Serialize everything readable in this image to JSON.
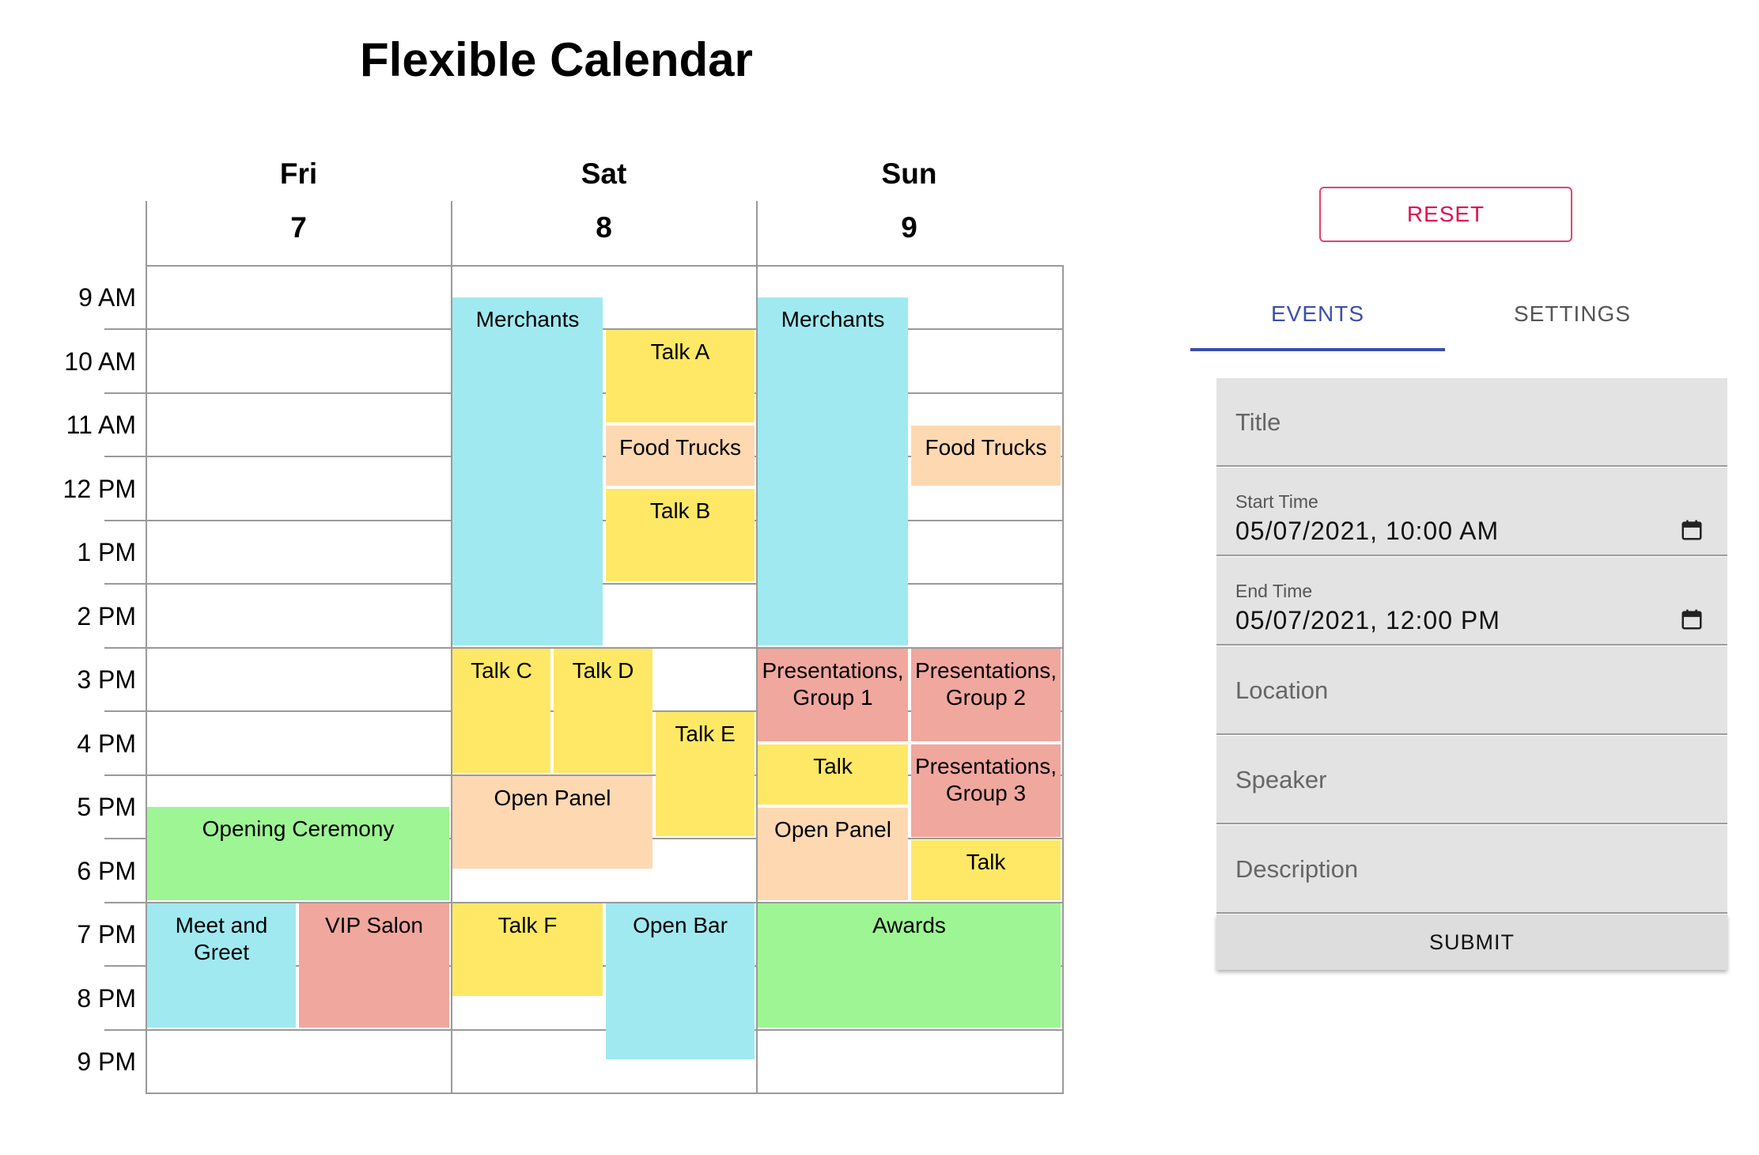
{
  "title": "Flexible Calendar",
  "days": [
    {
      "name": "Fri",
      "num": "7"
    },
    {
      "name": "Sat",
      "num": "8"
    },
    {
      "name": "Sun",
      "num": "9"
    }
  ],
  "times": [
    "9 AM",
    "10 AM",
    "11 AM",
    "12 PM",
    "1 PM",
    "2 PM",
    "3 PM",
    "4 PM",
    "5 PM",
    "6 PM",
    "7 PM",
    "8 PM",
    "9 PM"
  ],
  "colors": {
    "cyan": "#a0e9f0",
    "yellow": "#fee866",
    "peach": "#fed8b1",
    "pink": "#f0a79e",
    "green": "#9ef594",
    "accent": "#3b4fa8",
    "reset": "#e0114f"
  },
  "events": {
    "fri_opening": "Opening Ceremony",
    "fri_meet": "Meet and Greet",
    "fri_vip": "VIP Salon",
    "sat_merchants": "Merchants",
    "sat_talk_a": "Talk A",
    "sat_food": "Food Trucks",
    "sat_talk_b": "Talk B",
    "sat_talk_c": "Talk C",
    "sat_talk_d": "Talk D",
    "sat_talk_e": "Talk E",
    "sat_panel": "Open Panel",
    "sat_talk_f": "Talk F",
    "sat_bar": "Open Bar",
    "sun_merchants": "Merchants",
    "sun_food": "Food Trucks",
    "sun_pres1": "Presentations, Group 1",
    "sun_pres2": "Presentations, Group 2",
    "sun_talk1": "Talk",
    "sun_pres3": "Presentations, Group 3",
    "sun_panel": "Open Panel",
    "sun_talk2": "Talk",
    "sun_awards": "Awards"
  },
  "controls": {
    "reset_label": "RESET",
    "tab_events": "EVENTS",
    "tab_settings": "SETTINGS",
    "title_placeholder": "Title",
    "start_label": "Start Time",
    "start_value": "05/07/2021, 10:00 AM",
    "end_label": "End Time",
    "end_value": "05/07/2021, 12:00 PM",
    "location_placeholder": "Location",
    "speaker_placeholder": "Speaker",
    "description_placeholder": "Description",
    "submit_label": "SUBMIT",
    "calendar_icon": "calendar-icon"
  }
}
